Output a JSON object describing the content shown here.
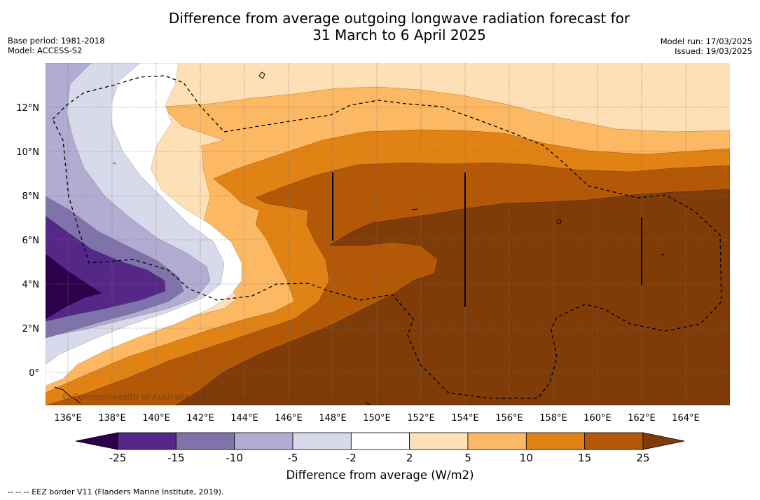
{
  "header": {
    "title_line1": "Difference from average outgoing longwave radiation forecast for",
    "title_line2": "31 March to 6 April 2025",
    "base_period": "Base period: 1981-2018",
    "model": "Model: ACCESS-S2",
    "model_run": "Model run: 17/03/2025",
    "issued": "Issued: 19/03/2025"
  },
  "map": {
    "lon_range": [
      135,
      166
    ],
    "lat_range": [
      -1.5,
      14
    ],
    "lon_ticks": [
      "136°E",
      "138°E",
      "140°E",
      "142°E",
      "144°E",
      "146°E",
      "148°E",
      "150°E",
      "152°E",
      "154°E",
      "156°E",
      "158°E",
      "160°E",
      "162°E",
      "164°E"
    ],
    "lat_ticks": [
      "0°",
      "2°N",
      "4°N",
      "6°N",
      "8°N",
      "10°N",
      "12°N"
    ],
    "copyright": "© Commonwealth of Australia 2025, Bureau of Meteorology, supported by COSPPac"
  },
  "colorbar": {
    "levels": [
      "-25",
      "-15",
      "-10",
      "-5",
      "-2",
      "2",
      "5",
      "10",
      "15",
      "25"
    ],
    "colors": [
      "#2d004b",
      "#542788",
      "#8073ac",
      "#b2abd2",
      "#d8daeb",
      "#ffffff",
      "#fee0b6",
      "#fdb863",
      "#e08214",
      "#b35806",
      "#7f3b08"
    ],
    "label": "Difference from average (W/m2)"
  },
  "footer": {
    "legend_line": "--  --  -- EEZ border V11 (Flanders Marine Institute, 2019)."
  }
}
